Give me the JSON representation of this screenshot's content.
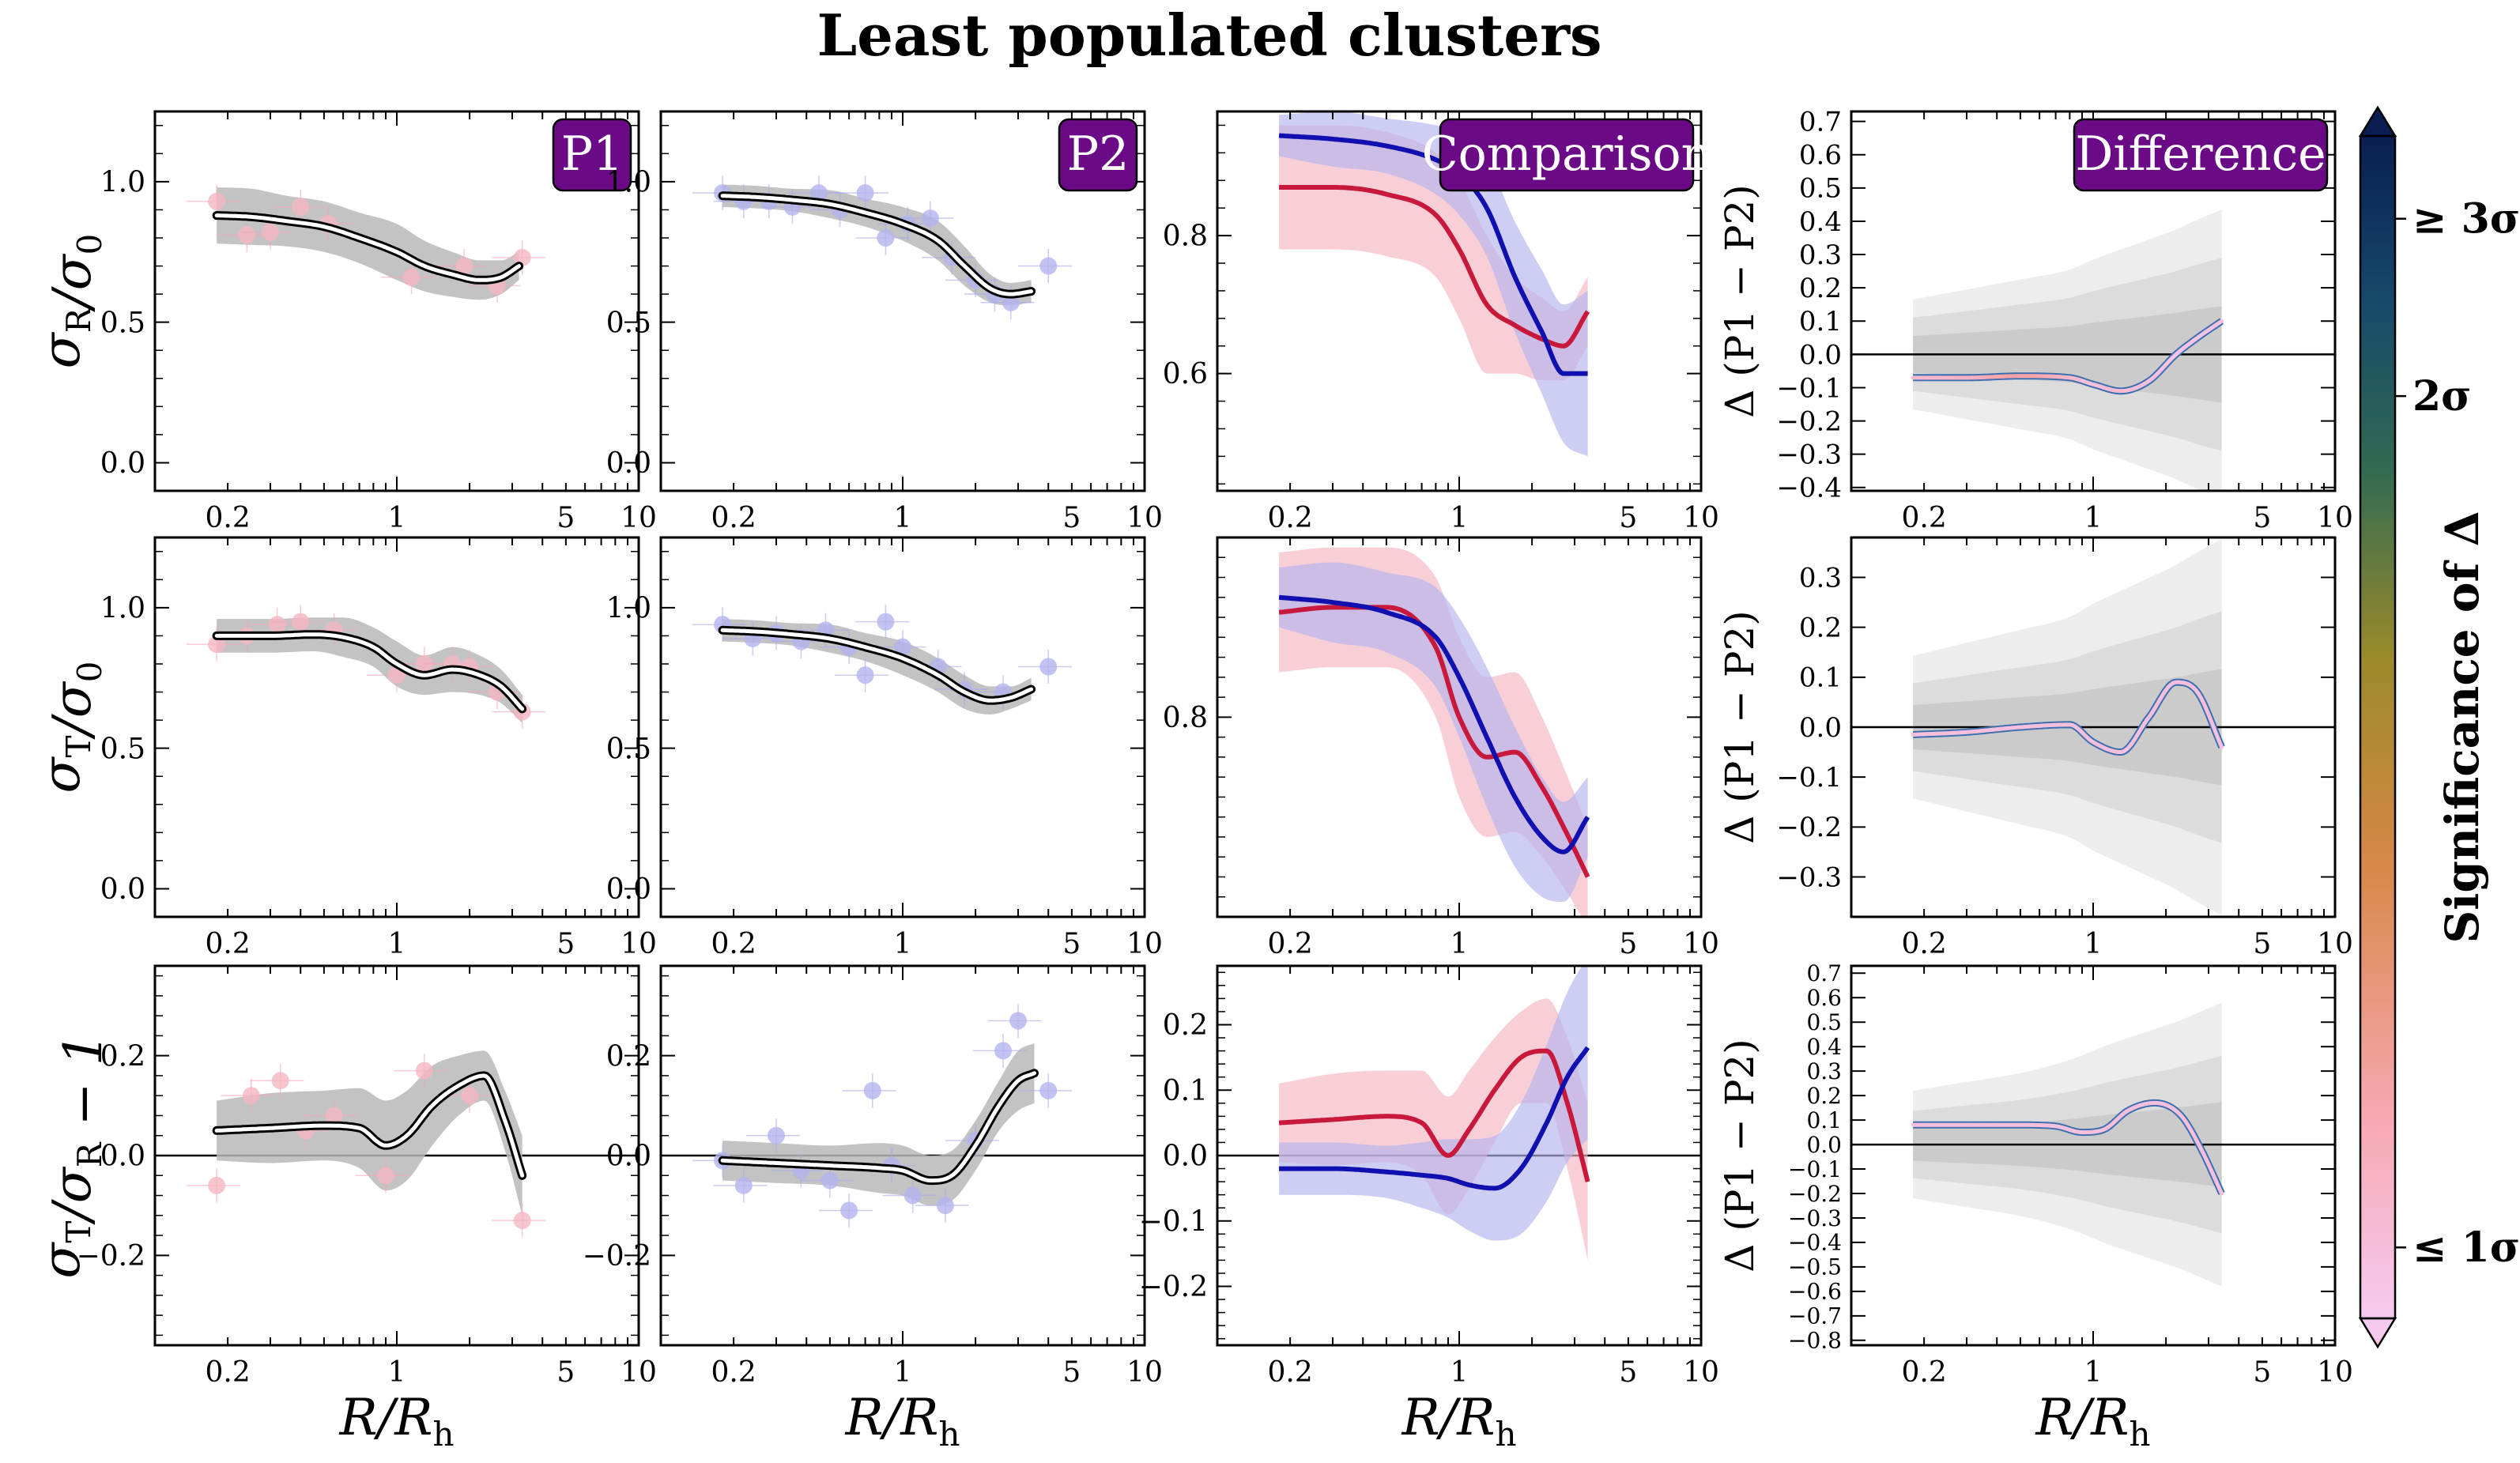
{
  "title": "Least populated clusters",
  "colors": {
    "p1": "#c8193c",
    "p1_band": "#f4b6c2",
    "p2": "#1010b0",
    "p2_band": "#b4b4ee",
    "panel_label_bg": "#6a0a86",
    "gray_band": "#b8b8b8"
  },
  "panel_labels": {
    "p1": "P1",
    "p2": "P2",
    "comparison": "Comparison",
    "difference": "Difference"
  },
  "xaxis": {
    "label": "R/R_h",
    "scale": "log",
    "range": [
      0.1,
      10
    ],
    "ticks": [
      0.2,
      1,
      5,
      10
    ],
    "tick_labels": [
      "0.2",
      "1",
      "5",
      "10"
    ]
  },
  "row_ylabels": [
    "σ_R/σ_0",
    "σ_T/σ_0",
    "σ_T/σ_R − 1"
  ],
  "diff_ylabel": "Δ (P1 − P2)",
  "colorbar": {
    "label": "Significance of Δ",
    "ticks": [
      {
        "label": "≤ 1σ",
        "pos": 0.06
      },
      {
        "label": "2σ",
        "pos": 0.78
      },
      {
        "label": "≥ 3σ",
        "pos": 0.93
      }
    ]
  },
  "chart_data": [
    {
      "row": 0,
      "col": 0,
      "type": "line",
      "name": "P1",
      "ylim": [
        -0.1,
        1.25
      ],
      "yticks": [
        0.0,
        0.5,
        1.0
      ],
      "x": [
        0.18,
        0.25,
        0.35,
        0.5,
        0.7,
        1.0,
        1.3,
        1.7,
        2.2,
        2.7,
        3.2
      ],
      "y": [
        0.88,
        0.875,
        0.86,
        0.84,
        0.8,
        0.75,
        0.7,
        0.67,
        0.65,
        0.66,
        0.7
      ],
      "band": [
        0.1,
        0.1,
        0.09,
        0.09,
        0.09,
        0.1,
        0.09,
        0.08,
        0.07,
        0.06,
        0.05
      ],
      "points": {
        "x": [
          0.18,
          0.24,
          0.3,
          0.4,
          0.52,
          1.15,
          1.9,
          2.6,
          3.3
        ],
        "y": [
          0.93,
          0.81,
          0.82,
          0.91,
          0.85,
          0.66,
          0.7,
          0.63,
          0.73
        ]
      }
    },
    {
      "row": 0,
      "col": 1,
      "type": "line",
      "name": "P2",
      "ylim": [
        -0.1,
        1.25
      ],
      "yticks": [
        0.0,
        0.5,
        1.0
      ],
      "x": [
        0.18,
        0.25,
        0.35,
        0.5,
        0.7,
        1.0,
        1.4,
        1.8,
        2.3,
        2.8,
        3.4
      ],
      "y": [
        0.95,
        0.945,
        0.935,
        0.92,
        0.89,
        0.85,
        0.79,
        0.7,
        0.62,
        0.6,
        0.61
      ],
      "band": [
        0.04,
        0.04,
        0.04,
        0.05,
        0.05,
        0.06,
        0.07,
        0.07,
        0.05,
        0.04,
        0.04
      ],
      "points": {
        "x": [
          0.18,
          0.22,
          0.28,
          0.35,
          0.45,
          0.55,
          0.7,
          0.85,
          1.05,
          1.3,
          1.6,
          2.0,
          2.4,
          2.8,
          4.0
        ],
        "y": [
          0.96,
          0.93,
          0.93,
          0.91,
          0.96,
          0.9,
          0.96,
          0.8,
          0.85,
          0.87,
          0.73,
          0.65,
          0.6,
          0.57,
          0.7
        ]
      }
    },
    {
      "row": 0,
      "col": 2,
      "type": "line",
      "name": "Comparison",
      "ylim": [
        0.43,
        0.98
      ],
      "yticks": [
        0.6,
        0.8
      ],
      "x": [
        0.18,
        0.3,
        0.5,
        0.8,
        1.0,
        1.3,
        1.7,
        2.2,
        2.7,
        3.4
      ],
      "series": [
        {
          "name": "P1",
          "y": [
            0.87,
            0.87,
            0.86,
            0.83,
            0.78,
            0.7,
            0.67,
            0.65,
            0.64,
            0.69
          ],
          "band": [
            0.09,
            0.09,
            0.09,
            0.09,
            0.1,
            0.1,
            0.07,
            0.06,
            0.05,
            0.05
          ]
        },
        {
          "name": "P2",
          "y": [
            0.945,
            0.94,
            0.93,
            0.91,
            0.89,
            0.84,
            0.74,
            0.66,
            0.6,
            0.6
          ],
          "band": [
            0.03,
            0.04,
            0.04,
            0.05,
            0.06,
            0.07,
            0.08,
            0.09,
            0.1,
            0.12
          ]
        }
      ]
    },
    {
      "row": 0,
      "col": 3,
      "type": "line",
      "name": "Difference",
      "ylim": [
        -0.41,
        0.73
      ],
      "yticks": [
        -0.4,
        -0.3,
        -0.2,
        -0.1,
        0.0,
        0.1,
        0.2,
        0.3,
        0.4,
        0.5,
        0.6,
        0.7
      ],
      "x": [
        0.18,
        0.3,
        0.5,
        0.8,
        1.0,
        1.3,
        1.7,
        2.2,
        2.7,
        3.4
      ],
      "y": [
        -0.07,
        -0.07,
        -0.065,
        -0.07,
        -0.09,
        -0.11,
        -0.08,
        0.0,
        0.05,
        0.1
      ],
      "bands": [
        0.1,
        0.2,
        0.3
      ],
      "significance": [
        0.08,
        0.12,
        0.2,
        0.1,
        0.05,
        0.08,
        0.05,
        0.03,
        0.03,
        0.05
      ]
    },
    {
      "row": 1,
      "col": 0,
      "type": "line",
      "name": "P1",
      "ylim": [
        -0.1,
        1.25
      ],
      "yticks": [
        0.0,
        0.5,
        1.0
      ],
      "x": [
        0.18,
        0.3,
        0.45,
        0.6,
        0.8,
        1.0,
        1.3,
        1.7,
        2.2,
        2.7,
        3.3
      ],
      "y": [
        0.9,
        0.9,
        0.905,
        0.895,
        0.86,
        0.8,
        0.76,
        0.78,
        0.76,
        0.72,
        0.64
      ],
      "band": [
        0.06,
        0.06,
        0.06,
        0.07,
        0.07,
        0.08,
        0.07,
        0.08,
        0.07,
        0.06,
        0.05
      ],
      "points": {
        "x": [
          0.18,
          0.24,
          0.32,
          0.4,
          0.55,
          1.0,
          1.3,
          1.7,
          2.0,
          2.6,
          3.3
        ],
        "y": [
          0.87,
          0.9,
          0.94,
          0.95,
          0.92,
          0.76,
          0.8,
          0.8,
          0.79,
          0.7,
          0.63
        ]
      }
    },
    {
      "row": 1,
      "col": 1,
      "type": "line",
      "name": "P2",
      "ylim": [
        -0.1,
        1.25
      ],
      "yticks": [
        0.0,
        0.5,
        1.0
      ],
      "x": [
        0.18,
        0.25,
        0.35,
        0.5,
        0.7,
        1.0,
        1.4,
        1.8,
        2.3,
        2.8,
        3.4
      ],
      "y": [
        0.92,
        0.915,
        0.905,
        0.89,
        0.86,
        0.82,
        0.76,
        0.7,
        0.67,
        0.68,
        0.71
      ],
      "band": [
        0.04,
        0.04,
        0.04,
        0.05,
        0.05,
        0.06,
        0.06,
        0.06,
        0.05,
        0.04,
        0.04
      ],
      "points": {
        "x": [
          0.18,
          0.24,
          0.3,
          0.38,
          0.48,
          0.6,
          0.7,
          0.85,
          1.0,
          1.4,
          1.8,
          2.6,
          4.0
        ],
        "y": [
          0.94,
          0.89,
          0.91,
          0.88,
          0.92,
          0.86,
          0.76,
          0.95,
          0.86,
          0.79,
          0.71,
          0.7,
          0.79
        ]
      }
    },
    {
      "row": 1,
      "col": 2,
      "type": "line",
      "name": "Comparison",
      "ylim": [
        0.6,
        0.98
      ],
      "yticks": [
        0.8
      ],
      "x": [
        0.18,
        0.3,
        0.5,
        0.8,
        1.0,
        1.3,
        1.7,
        2.2,
        2.7,
        3.4
      ],
      "series": [
        {
          "name": "P1",
          "y": [
            0.905,
            0.91,
            0.91,
            0.87,
            0.8,
            0.76,
            0.765,
            0.73,
            0.69,
            0.64
          ],
          "band": [
            0.06,
            0.06,
            0.06,
            0.07,
            0.08,
            0.08,
            0.08,
            0.07,
            0.06,
            0.05
          ]
        },
        {
          "name": "P2",
          "y": [
            0.92,
            0.915,
            0.905,
            0.88,
            0.84,
            0.78,
            0.72,
            0.68,
            0.665,
            0.7
          ],
          "band": [
            0.03,
            0.04,
            0.04,
            0.05,
            0.06,
            0.07,
            0.07,
            0.06,
            0.05,
            0.04
          ]
        }
      ]
    },
    {
      "row": 1,
      "col": 3,
      "type": "line",
      "name": "Difference",
      "ylim": [
        -0.38,
        0.38
      ],
      "yticks": [
        -0.3,
        -0.2,
        -0.1,
        0.0,
        0.1,
        0.2,
        0.3
      ],
      "x": [
        0.18,
        0.3,
        0.5,
        0.8,
        1.0,
        1.3,
        1.7,
        2.2,
        2.7,
        3.4
      ],
      "y": [
        -0.015,
        -0.01,
        0.0,
        0.005,
        -0.03,
        -0.05,
        0.02,
        0.09,
        0.07,
        -0.04
      ],
      "bands": [
        0.08,
        0.16,
        0.26
      ],
      "significance": [
        0.05,
        0.05,
        0.05,
        0.05,
        0.06,
        0.05,
        0.05,
        0.05,
        0.05,
        0.05
      ]
    },
    {
      "row": 2,
      "col": 0,
      "type": "line",
      "name": "P1",
      "ylim": [
        -0.38,
        0.38
      ],
      "yticks": [
        -0.2,
        0.0,
        0.2
      ],
      "x": [
        0.18,
        0.3,
        0.5,
        0.7,
        0.9,
        1.1,
        1.4,
        1.8,
        2.3,
        2.8,
        3.3
      ],
      "y": [
        0.05,
        0.055,
        0.06,
        0.055,
        0.02,
        0.04,
        0.1,
        0.14,
        0.16,
        0.07,
        -0.04
      ],
      "band": [
        0.06,
        0.07,
        0.07,
        0.08,
        0.09,
        0.09,
        0.08,
        0.06,
        0.05,
        0.06,
        0.08
      ],
      "points": {
        "x": [
          0.18,
          0.25,
          0.33,
          0.42,
          0.55,
          0.9,
          1.3,
          2.0,
          3.3
        ],
        "y": [
          -0.06,
          0.12,
          0.15,
          0.05,
          0.08,
          -0.04,
          0.17,
          0.12,
          -0.13
        ]
      }
    },
    {
      "row": 2,
      "col": 1,
      "type": "line",
      "name": "P2",
      "ylim": [
        -0.38,
        0.38
      ],
      "yticks": [
        -0.2,
        0.0,
        0.2
      ],
      "x": [
        0.18,
        0.3,
        0.5,
        0.8,
        1.0,
        1.3,
        1.6,
        2.0,
        2.5,
        3.0,
        3.5
      ],
      "y": [
        -0.01,
        -0.015,
        -0.02,
        -0.025,
        -0.03,
        -0.05,
        -0.04,
        0.02,
        0.1,
        0.15,
        0.165
      ],
      "band": [
        0.04,
        0.04,
        0.04,
        0.05,
        0.05,
        0.05,
        0.05,
        0.05,
        0.05,
        0.06,
        0.06
      ],
      "points": {
        "x": [
          0.18,
          0.22,
          0.3,
          0.38,
          0.5,
          0.6,
          0.75,
          0.9,
          1.1,
          1.5,
          2.0,
          2.6,
          3.0,
          4.0
        ],
        "y": [
          -0.01,
          -0.06,
          0.04,
          -0.03,
          -0.05,
          -0.11,
          0.13,
          -0.02,
          -0.08,
          -0.1,
          0.03,
          0.21,
          0.27,
          0.13
        ]
      }
    },
    {
      "row": 2,
      "col": 2,
      "type": "line",
      "name": "Comparison",
      "ylim": [
        -0.29,
        0.29
      ],
      "yticks": [
        -0.2,
        -0.1,
        0.0,
        0.1,
        0.2
      ],
      "x": [
        0.18,
        0.3,
        0.5,
        0.7,
        0.9,
        1.1,
        1.4,
        1.8,
        2.3,
        2.8,
        3.4
      ],
      "series": [
        {
          "name": "P1",
          "y": [
            0.05,
            0.055,
            0.06,
            0.05,
            0.0,
            0.04,
            0.1,
            0.15,
            0.16,
            0.08,
            -0.04
          ],
          "band": [
            0.06,
            0.07,
            0.07,
            0.08,
            0.09,
            0.09,
            0.08,
            0.07,
            0.08,
            0.1,
            0.12
          ]
        },
        {
          "name": "P2",
          "y": [
            -0.02,
            -0.02,
            -0.025,
            -0.03,
            -0.035,
            -0.045,
            -0.05,
            -0.02,
            0.05,
            0.12,
            0.165
          ],
          "band": [
            0.04,
            0.04,
            0.04,
            0.05,
            0.06,
            0.07,
            0.08,
            0.1,
            0.12,
            0.13,
            0.14
          ]
        }
      ]
    },
    {
      "row": 2,
      "col": 3,
      "type": "line",
      "name": "Difference",
      "ylim": [
        -0.82,
        0.73
      ],
      "yticks": [
        -0.8,
        -0.7,
        -0.6,
        -0.5,
        -0.4,
        -0.3,
        -0.2,
        -0.1,
        0.0,
        0.1,
        0.2,
        0.3,
        0.4,
        0.5,
        0.6,
        0.7
      ],
      "x": [
        0.18,
        0.3,
        0.5,
        0.7,
        0.9,
        1.1,
        1.4,
        1.8,
        2.3,
        2.8,
        3.4
      ],
      "y": [
        0.08,
        0.08,
        0.08,
        0.075,
        0.05,
        0.06,
        0.14,
        0.17,
        0.12,
        -0.02,
        -0.2
      ],
      "bands": [
        0.12,
        0.25,
        0.4
      ],
      "significance": [
        0.05,
        0.05,
        0.05,
        0.05,
        0.05,
        0.05,
        0.05,
        0.05,
        0.05,
        0.05,
        0.05
      ]
    }
  ]
}
